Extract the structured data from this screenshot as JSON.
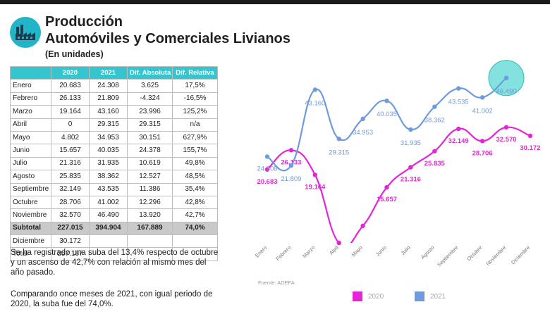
{
  "header": {
    "title_line1": "Producción",
    "title_line2": "Automóviles y Comerciales Livianos",
    "subtitle": "(En unidades)"
  },
  "table": {
    "headers": [
      "",
      "2020",
      "2021",
      "Dif. Absoluta",
      "Dif. Relativa"
    ],
    "rows": [
      [
        "Enero",
        "20.683",
        "24.308",
        "3.625",
        "17,5%"
      ],
      [
        "Febrero",
        "26.133",
        "21.809",
        "-4.324",
        "-16,5%"
      ],
      [
        "Marzo",
        "19.164",
        "43.160",
        "23.996",
        "125,2%"
      ],
      [
        "Abril",
        "0",
        "29.315",
        "29.315",
        "n/a"
      ],
      [
        "Mayo",
        "4.802",
        "34.953",
        "30.151",
        "627,9%"
      ],
      [
        "Junio",
        "15.657",
        "40.035",
        "24.378",
        "155,7%"
      ],
      [
        "Julio",
        "21.316",
        "31.935",
        "10.619",
        "49,8%"
      ],
      [
        "Agosto",
        "25.835",
        "38.362",
        "12.527",
        "48,5%"
      ],
      [
        "Septiembre",
        "32.149",
        "43.535",
        "11.386",
        "35,4%"
      ],
      [
        "Octubre",
        "28.706",
        "41.002",
        "12.296",
        "42,8%"
      ],
      [
        "Noviembre",
        "32.570",
        "46.490",
        "13.920",
        "42,7%"
      ],
      [
        "Subtotal",
        "227.015",
        "394.904",
        "167.889",
        "74,0%"
      ],
      [
        "Diciembre",
        "30.172",
        "",
        "",
        ""
      ],
      [
        "Total",
        "257.187",
        "",
        "",
        ""
      ]
    ]
  },
  "notes": {
    "note1": "Se ha registrado una suba del 13,4% respecto de octubre y un ascenso de 42,7% con relación al mismo mes del año pasado.",
    "note2": "Comparando once meses de 2021, con igual periodo de 2020, la suba fue del 74,0%."
  },
  "source": "Fuente: ADEFA",
  "colors": {
    "s2020": "#e325d4",
    "s2021": "#6f9bdc",
    "accent": "#22b5c7",
    "highlight": "#4fd6cf"
  },
  "icons": {
    "logo": "factory-icon"
  },
  "chart_data": {
    "type": "line",
    "categories": [
      "Enero",
      "Febrero",
      "Marzo",
      "Abril",
      "Mayo",
      "Junio",
      "Julio",
      "Agosto",
      "Septiembre",
      "Octubre",
      "Noviembre",
      "Diciembre"
    ],
    "series": [
      {
        "name": "2020",
        "values": [
          20683,
          26133,
          19164,
          0,
          4802,
          15657,
          21316,
          25835,
          32149,
          28706,
          32570,
          30172
        ],
        "labels": [
          "20.683",
          "26.133",
          "19.164",
          "",
          "",
          "15.657",
          "21.316",
          "25.835",
          "32.149",
          "28.706",
          "32.570",
          "30.172"
        ]
      },
      {
        "name": "2021",
        "values": [
          24308,
          21809,
          43160,
          29315,
          34953,
          40035,
          31935,
          38362,
          43535,
          41002,
          46490,
          null
        ],
        "labels": [
          "24.308",
          "21.809",
          "43.160",
          "29.315",
          "34.953",
          "40.035",
          "31.935",
          "38.362",
          "43.535",
          "41.002",
          "46.490",
          ""
        ]
      }
    ],
    "ylim": [
      0,
      50000
    ],
    "grid": false,
    "legend_position": "bottom",
    "smooth": true,
    "highlight_point": {
      "series": "2021",
      "category": "Noviembre"
    }
  }
}
